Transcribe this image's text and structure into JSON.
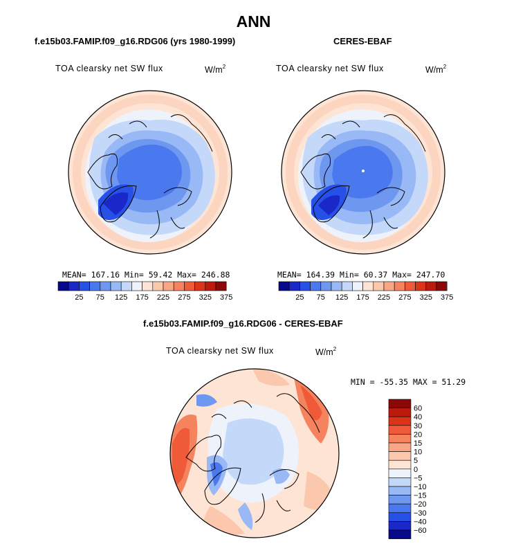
{
  "title": "ANN",
  "panels": [
    {
      "id": "model",
      "header": "f.e15b03.FAMIP.f09_g16.RDG06 (yrs 1980-1999)",
      "variable": "TOA clearsky net SW flux",
      "units": "W/m",
      "units_sup": "2",
      "stats": {
        "mean_label": "MEAN=",
        "mean": "167.16",
        "min_label": "Min=",
        "min": "59.42",
        "max_label": "Max=",
        "max": "246.88"
      }
    },
    {
      "id": "obs",
      "header": "CERES-EBAF",
      "variable": "TOA clearsky net SW flux",
      "units": "W/m",
      "units_sup": "2",
      "stats": {
        "mean_label": "MEAN=",
        "mean": "164.39",
        "min_label": "Min=",
        "min": "60.37",
        "max_label": "Max=",
        "max": "247.70"
      }
    },
    {
      "id": "diff",
      "header": "f.e15b03.FAMIP.f09_g16.RDG06 - CERES-EBAF",
      "variable": "TOA clearsky net SW flux",
      "units": "W/m",
      "units_sup": "2",
      "stats_text": "MIN = -55.35 MAX =  51.29"
    }
  ],
  "colorbar_abs": {
    "colors": [
      "#08088a",
      "#1a28c8",
      "#2650e6",
      "#4a78ee",
      "#6e98f0",
      "#98b8f6",
      "#c4d8fa",
      "#eef3fb",
      "#fde4d4",
      "#fbc8ae",
      "#f8a684",
      "#f5835d",
      "#ef5a38",
      "#dc3418",
      "#bc1a0c",
      "#8a0808"
    ],
    "labels": [
      "25",
      "75",
      "125",
      "175",
      "225",
      "275",
      "325",
      "375"
    ]
  },
  "colorbar_diff": {
    "colors": [
      "#8a0808",
      "#bc1a0c",
      "#dc3418",
      "#ef5a38",
      "#f5835d",
      "#f8a684",
      "#fbc8ae",
      "#fde4d4",
      "#eef3fb",
      "#c4d8fa",
      "#98b8f6",
      "#6e98f0",
      "#4a78ee",
      "#2650e6",
      "#1a28c8",
      "#08088a"
    ],
    "labels": [
      "60",
      "40",
      "30",
      "20",
      "15",
      "10",
      "5",
      "0",
      "−5",
      "−10",
      "−15",
      "−20",
      "−30",
      "−40",
      "−60"
    ]
  }
}
